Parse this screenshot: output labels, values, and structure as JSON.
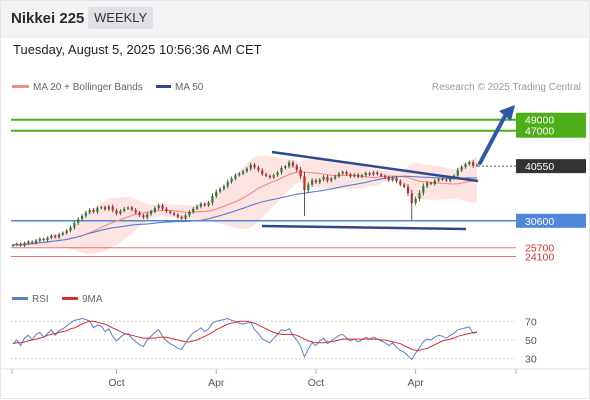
{
  "header": {
    "title": "Nikkei 225",
    "period": "WEEKLY",
    "timestamp": "Tuesday, August 5, 2025 10:56:36 AM CET"
  },
  "legend": {
    "ma20": "MA 20 + Bollinger Bands",
    "ma50": "MA 50",
    "credit": "Research © 2025 Trading Central",
    "rsi": "RSI",
    "ma9": "9MA"
  },
  "colors": {
    "candle_up": "#2e7d32",
    "candle_down": "#c62828",
    "ma20": "#f28b82",
    "bollinger_fill": "#fde3e1",
    "ma50": "#5b7fc7",
    "support": "#4f86d9",
    "target": "#4caf1a",
    "resistance": "#e57373",
    "trend": "#2c4a8f",
    "rsi": "#5b7fc7",
    "rsi_ma": "#d32f2f",
    "current": "#333333"
  },
  "chart_data": [
    {
      "type": "candlestick",
      "title": "Nikkei 225",
      "y_range": [
        18000,
        53500
      ],
      "x_tick_labels": [
        "Oct",
        "Apr",
        "Oct",
        "Apr"
      ],
      "price_levels": [
        {
          "label": "49000",
          "value": 49000,
          "kind": "target"
        },
        {
          "label": "47000",
          "value": 47000,
          "kind": "target"
        },
        {
          "label": "40550",
          "value": 40550,
          "kind": "current"
        },
        {
          "label": "30600",
          "value": 30600,
          "kind": "support"
        },
        {
          "label": "25700",
          "value": 25700,
          "kind": "resistance"
        },
        {
          "label": "24100",
          "value": 24100,
          "kind": "resistance"
        }
      ],
      "weekly_close": [
        26200,
        26400,
        26100,
        26500,
        26800,
        26600,
        27000,
        27300,
        27100,
        27500,
        27900,
        27600,
        28100,
        28400,
        28800,
        29400,
        30200,
        30900,
        31500,
        32100,
        32600,
        32200,
        32900,
        33100,
        32700,
        33200,
        32500,
        31900,
        32400,
        32800,
        33000,
        32600,
        32100,
        31600,
        31200,
        31800,
        32300,
        32900,
        33400,
        32800,
        32300,
        32000,
        31700,
        31300,
        31000,
        31600,
        32200,
        32800,
        33200,
        33700,
        33400,
        33900,
        35100,
        35900,
        36400,
        36900,
        37700,
        38300,
        38900,
        39200,
        39600,
        40100,
        40800,
        40300,
        39800,
        39100,
        38800,
        38500,
        38900,
        39400,
        40200,
        40500,
        41200,
        40600,
        39900,
        38700,
        36200,
        37200,
        38000,
        37600,
        38100,
        38600,
        37900,
        38300,
        38700,
        39200,
        39500,
        39100,
        38700,
        39000,
        38600,
        38900,
        39300,
        39000,
        39400,
        39100,
        38800,
        38500,
        38000,
        38400,
        37800,
        37200,
        36800,
        35600,
        33800,
        34600,
        35700,
        36900,
        37500,
        37300,
        37900,
        38200,
        38100,
        37900,
        38400,
        38800,
        39800,
        40400,
        40900,
        41300,
        40600,
        40800
      ],
      "series": [
        {
          "name": "MA 20 + Bollinger Bands"
        },
        {
          "name": "MA 50"
        }
      ]
    },
    {
      "type": "line",
      "title": "RSI",
      "y_ticks": [
        70,
        50,
        30
      ],
      "y_range": [
        20,
        80
      ],
      "series": [
        {
          "name": "RSI",
          "values": [
            46,
            50,
            44,
            52,
            55,
            50,
            56,
            58,
            53,
            57,
            61,
            55,
            60,
            62,
            65,
            68,
            71,
            72,
            73,
            72,
            70,
            63,
            66,
            65,
            59,
            62,
            54,
            49,
            53,
            56,
            57,
            52,
            48,
            45,
            43,
            50,
            54,
            58,
            61,
            54,
            49,
            46,
            44,
            41,
            40,
            47,
            53,
            58,
            60,
            63,
            59,
            62,
            68,
            70,
            71,
            72,
            73,
            71,
            70,
            68,
            67,
            68,
            69,
            61,
            57,
            51,
            49,
            47,
            52,
            56,
            61,
            60,
            62,
            55,
            50,
            43,
            32,
            40,
            47,
            44,
            49,
            52,
            46,
            49,
            52,
            55,
            56,
            52,
            49,
            51,
            48,
            50,
            53,
            51,
            53,
            51,
            49,
            47,
            44,
            47,
            42,
            39,
            37,
            33,
            29,
            36,
            42,
            48,
            51,
            50,
            53,
            55,
            54,
            52,
            55,
            57,
            61,
            62,
            63,
            64,
            57,
            59
          ]
        },
        {
          "name": "9MA",
          "values": [
            46,
            47,
            47,
            48,
            49,
            50,
            51,
            52,
            53,
            55,
            56,
            57,
            58,
            59,
            60,
            62,
            63,
            65,
            67,
            69,
            70,
            70,
            69,
            68,
            67,
            65,
            63,
            61,
            59,
            57,
            56,
            55,
            54,
            53,
            52,
            52,
            52,
            52,
            53,
            53,
            53,
            52,
            51,
            50,
            49,
            48,
            48,
            49,
            50,
            52,
            54,
            56,
            58,
            61,
            63,
            65,
            67,
            68,
            69,
            70,
            70,
            70,
            69,
            68,
            66,
            64,
            62,
            60,
            58,
            57,
            56,
            56,
            56,
            56,
            55,
            53,
            51,
            49,
            48,
            47,
            47,
            47,
            48,
            48,
            49,
            50,
            51,
            51,
            51,
            51,
            51,
            51,
            51,
            51,
            51,
            51,
            50,
            50,
            49,
            48,
            47,
            46,
            44,
            42,
            40,
            39,
            39,
            40,
            41,
            43,
            45,
            47,
            49,
            50,
            51,
            52,
            54,
            55,
            56,
            57,
            58,
            58
          ]
        }
      ]
    }
  ]
}
